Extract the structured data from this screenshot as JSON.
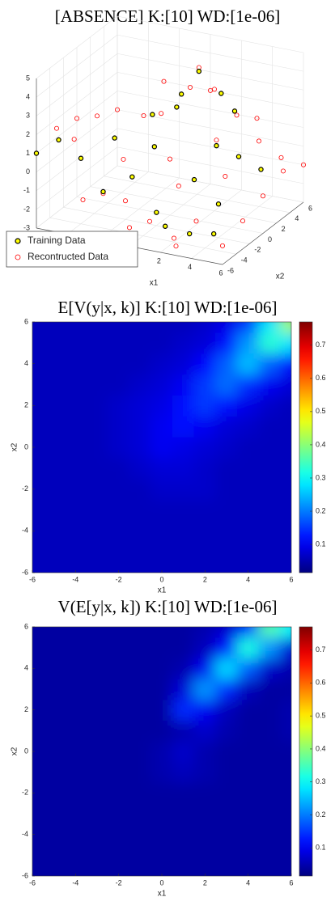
{
  "chart_data": [
    {
      "type": "scatter3d",
      "title": "[ABSENCE] K:[10] WD:[1e-06]",
      "xlabel": "x1",
      "ylabel": "x2",
      "xlim": [
        -6,
        6
      ],
      "ylim": [
        -6,
        6
      ],
      "zlim": [
        -3,
        5
      ],
      "xticks": [
        -6,
        -4,
        -2,
        0,
        2,
        4,
        6
      ],
      "yticks": [
        -6,
        -4,
        -2,
        0,
        2,
        4,
        6
      ],
      "zticks": [
        -3,
        -2,
        -1,
        0,
        1,
        2,
        3,
        4,
        5
      ],
      "grid": true,
      "legend": "lower left",
      "series": [
        {
          "name": "Recontructed Data",
          "color": "#ff0000",
          "filled": false,
          "x": [
            -6,
            -6,
            -6,
            -6,
            -6,
            -3,
            -3,
            -3,
            -3,
            -3,
            0,
            0,
            0,
            0,
            0,
            3,
            3,
            3,
            3,
            3,
            6,
            6,
            6,
            6,
            6,
            1,
            2,
            -4,
            4,
            5,
            -1,
            1,
            2,
            -2,
            4
          ],
          "y": [
            -6,
            -3,
            0,
            3,
            6,
            -6,
            -3,
            0,
            3,
            6,
            -6,
            -3,
            0,
            3,
            6,
            -6,
            -3,
            0,
            3,
            6,
            -6,
            -3,
            0,
            3,
            6,
            2,
            2,
            -5,
            4,
            5,
            1,
            -1,
            -4,
            -2,
            -1
          ],
          "z": [
            1,
            1.5,
            1.2,
            0.5,
            0,
            -1,
            -1.5,
            -0.5,
            1,
            2,
            -2,
            -2.5,
            0,
            3,
            2,
            -2.5,
            -2,
            1.5,
            2,
            1,
            -2,
            -1.5,
            -1,
            -0.5,
            -1,
            4.5,
            3.5,
            1.8,
            0.5,
            -0.5,
            2,
            -1,
            -2.8,
            -2,
            0
          ]
        },
        {
          "name": "Training Data",
          "color": "#ffff00",
          "edgecolor": "#000000",
          "filled": true,
          "x": [
            -6,
            -5,
            -4,
            -3,
            -2,
            -1,
            0,
            1,
            2,
            0,
            1,
            2,
            3,
            4,
            5,
            3,
            -2,
            -1,
            4,
            5,
            -4,
            2
          ],
          "y": [
            -6,
            -5,
            -4,
            -3,
            -1,
            0,
            1,
            2,
            3,
            -2,
            -3,
            -1,
            0,
            1,
            2,
            -4,
            2,
            4,
            -2,
            -5,
            1,
            5
          ],
          "z": [
            1,
            1.6,
            0.5,
            -1.4,
            -1,
            0.5,
            2.5,
            4.3,
            3,
            -2.3,
            -2.6,
            -0.5,
            1.2,
            0.5,
            -0.3,
            -2.4,
            1.5,
            2.2,
            -1.2,
            -1.8,
            0.2,
            1.5
          ]
        }
      ]
    },
    {
      "type": "heatmap",
      "title": "E[V(y|x, k)] K:[10] WD:[1e-06]",
      "xlabel": "x1",
      "ylabel": "x2",
      "colormap": "jet",
      "clim": [
        0.015,
        0.77
      ],
      "cticks": [
        0.1,
        0.2,
        0.3,
        0.4,
        0.5,
        0.6,
        0.7
      ],
      "xlim": [
        -6,
        6
      ],
      "ylim": [
        -6,
        6
      ],
      "xticks": [
        -6,
        -4,
        -2,
        0,
        2,
        4,
        6
      ],
      "yticks": [
        -6,
        -4,
        -2,
        0,
        2,
        4,
        6
      ],
      "x": [
        -6,
        -5,
        -4,
        -3,
        -2,
        -1,
        0,
        1,
        2,
        3,
        4,
        5,
        6
      ],
      "y": [
        -6,
        -5,
        -4,
        -3,
        -2,
        -1,
        0,
        1,
        2,
        3,
        4,
        5,
        6
      ],
      "z": [
        [
          0.06,
          0.06,
          0.06,
          0.06,
          0.06,
          0.06,
          0.06,
          0.06,
          0.06,
          0.06,
          0.06,
          0.06,
          0.06
        ],
        [
          0.06,
          0.06,
          0.06,
          0.06,
          0.06,
          0.06,
          0.06,
          0.06,
          0.06,
          0.06,
          0.06,
          0.06,
          0.06
        ],
        [
          0.06,
          0.06,
          0.06,
          0.06,
          0.06,
          0.06,
          0.06,
          0.06,
          0.06,
          0.06,
          0.06,
          0.06,
          0.06
        ],
        [
          0.06,
          0.06,
          0.06,
          0.06,
          0.06,
          0.06,
          0.06,
          0.06,
          0.06,
          0.06,
          0.06,
          0.06,
          0.06
        ],
        [
          0.06,
          0.06,
          0.06,
          0.06,
          0.06,
          0.06,
          0.07,
          0.07,
          0.07,
          0.06,
          0.06,
          0.06,
          0.06
        ],
        [
          0.06,
          0.06,
          0.06,
          0.06,
          0.06,
          0.07,
          0.08,
          0.08,
          0.07,
          0.06,
          0.06,
          0.06,
          0.06
        ],
        [
          0.06,
          0.06,
          0.06,
          0.06,
          0.07,
          0.08,
          0.1,
          0.09,
          0.08,
          0.07,
          0.06,
          0.06,
          0.06
        ],
        [
          0.06,
          0.06,
          0.06,
          0.06,
          0.07,
          0.08,
          0.1,
          0.12,
          0.1,
          0.08,
          0.07,
          0.06,
          0.06
        ],
        [
          0.06,
          0.06,
          0.06,
          0.06,
          0.07,
          0.08,
          0.09,
          0.12,
          0.15,
          0.12,
          0.09,
          0.07,
          0.06
        ],
        [
          0.06,
          0.06,
          0.06,
          0.06,
          0.06,
          0.07,
          0.08,
          0.1,
          0.15,
          0.19,
          0.14,
          0.1,
          0.08
        ],
        [
          0.06,
          0.06,
          0.06,
          0.06,
          0.06,
          0.06,
          0.07,
          0.08,
          0.11,
          0.18,
          0.25,
          0.18,
          0.12
        ],
        [
          0.06,
          0.06,
          0.06,
          0.06,
          0.06,
          0.06,
          0.06,
          0.07,
          0.08,
          0.12,
          0.22,
          0.33,
          0.28
        ],
        [
          0.06,
          0.06,
          0.06,
          0.06,
          0.06,
          0.06,
          0.06,
          0.06,
          0.07,
          0.09,
          0.15,
          0.28,
          0.42
        ]
      ]
    },
    {
      "type": "heatmap",
      "title": "V(E[y|x, k]) K:[10] WD:[1e-06]",
      "xlabel": "x1",
      "ylabel": "x2",
      "colormap": "jet",
      "clim": [
        0.015,
        0.77
      ],
      "cticks": [
        0.1,
        0.2,
        0.3,
        0.4,
        0.5,
        0.6,
        0.7
      ],
      "xlim": [
        -6,
        6
      ],
      "ylim": [
        -6,
        6
      ],
      "xticks": [
        -6,
        -4,
        -2,
        0,
        2,
        4,
        6
      ],
      "yticks": [
        -6,
        -4,
        -2,
        0,
        2,
        4,
        6
      ],
      "x": [
        -6,
        -5,
        -4,
        -3,
        -2,
        -1,
        0,
        1,
        2,
        3,
        4,
        5,
        6
      ],
      "y": [
        -6,
        -5,
        -4,
        -3,
        -2,
        -1,
        0,
        1,
        2,
        3,
        4,
        5,
        6
      ],
      "z": [
        [
          0.04,
          0.04,
          0.04,
          0.04,
          0.04,
          0.04,
          0.04,
          0.04,
          0.04,
          0.04,
          0.04,
          0.04,
          0.04
        ],
        [
          0.04,
          0.04,
          0.04,
          0.04,
          0.04,
          0.04,
          0.04,
          0.04,
          0.04,
          0.04,
          0.04,
          0.04,
          0.04
        ],
        [
          0.04,
          0.04,
          0.04,
          0.04,
          0.04,
          0.04,
          0.04,
          0.04,
          0.04,
          0.04,
          0.04,
          0.04,
          0.04
        ],
        [
          0.04,
          0.04,
          0.04,
          0.04,
          0.04,
          0.04,
          0.04,
          0.04,
          0.04,
          0.04,
          0.04,
          0.04,
          0.04
        ],
        [
          0.04,
          0.04,
          0.04,
          0.04,
          0.04,
          0.04,
          0.04,
          0.04,
          0.04,
          0.04,
          0.04,
          0.04,
          0.04
        ],
        [
          0.04,
          0.04,
          0.04,
          0.04,
          0.04,
          0.04,
          0.05,
          0.06,
          0.05,
          0.04,
          0.04,
          0.04,
          0.04
        ],
        [
          0.04,
          0.04,
          0.04,
          0.04,
          0.04,
          0.04,
          0.05,
          0.07,
          0.05,
          0.04,
          0.04,
          0.04,
          0.04
        ],
        [
          0.04,
          0.04,
          0.04,
          0.04,
          0.04,
          0.04,
          0.04,
          0.05,
          0.07,
          0.05,
          0.04,
          0.04,
          0.05
        ],
        [
          0.04,
          0.04,
          0.04,
          0.04,
          0.04,
          0.04,
          0.04,
          0.14,
          0.1,
          0.06,
          0.04,
          0.04,
          0.05
        ],
        [
          0.04,
          0.04,
          0.04,
          0.04,
          0.04,
          0.04,
          0.04,
          0.08,
          0.22,
          0.14,
          0.06,
          0.04,
          0.04
        ],
        [
          0.04,
          0.04,
          0.04,
          0.04,
          0.04,
          0.04,
          0.04,
          0.05,
          0.1,
          0.27,
          0.18,
          0.07,
          0.05
        ],
        [
          0.04,
          0.04,
          0.04,
          0.04,
          0.04,
          0.04,
          0.04,
          0.04,
          0.06,
          0.12,
          0.32,
          0.22,
          0.08
        ],
        [
          0.04,
          0.04,
          0.04,
          0.04,
          0.04,
          0.04,
          0.04,
          0.04,
          0.05,
          0.07,
          0.14,
          0.36,
          0.3
        ]
      ]
    }
  ]
}
